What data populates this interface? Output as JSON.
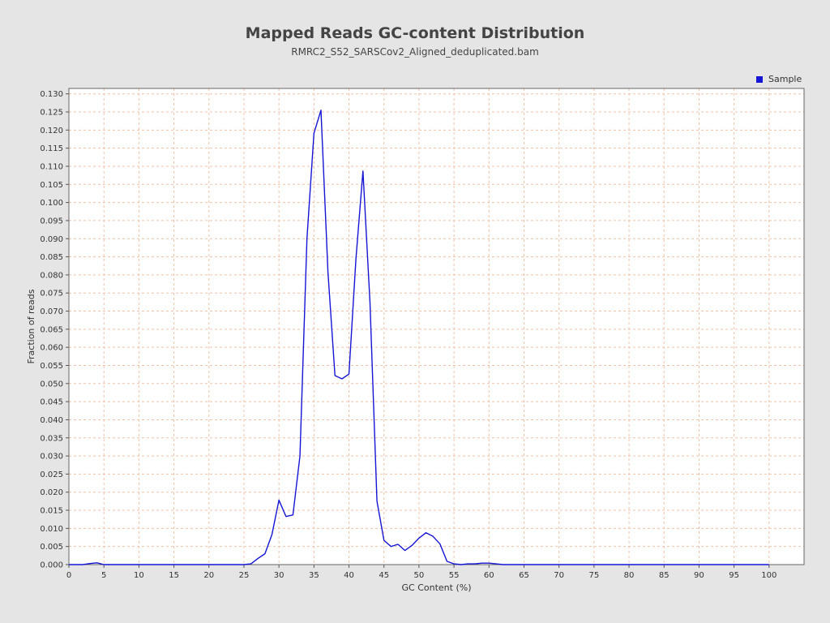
{
  "chart_data": {
    "type": "line",
    "title": "Mapped Reads GC-content Distribution",
    "subtitle": "RMRC2_S52_SARSCov2_Aligned_deduplicated.bam",
    "xlabel": "GC Content (%)",
    "ylabel": "Fraction of reads",
    "xlim": [
      0,
      105
    ],
    "ylim": [
      0,
      0.1315
    ],
    "x_ticks": [
      0,
      5,
      10,
      15,
      20,
      25,
      30,
      35,
      40,
      45,
      50,
      55,
      60,
      65,
      70,
      75,
      80,
      85,
      90,
      95,
      100
    ],
    "y_ticks": [
      "0.000",
      "0.005",
      "0.010",
      "0.015",
      "0.020",
      "0.025",
      "0.030",
      "0.035",
      "0.040",
      "0.045",
      "0.050",
      "0.055",
      "0.060",
      "0.065",
      "0.070",
      "0.075",
      "0.080",
      "0.085",
      "0.090",
      "0.095",
      "0.100",
      "0.105",
      "0.110",
      "0.115",
      "0.120",
      "0.125",
      "0.130"
    ],
    "grid": true,
    "legend_position": "top-right",
    "series": [
      {
        "name": "Sample",
        "color": "#1515d6",
        "x": [
          0,
          1,
          2,
          3,
          4,
          5,
          6,
          7,
          8,
          9,
          10,
          11,
          12,
          13,
          14,
          15,
          16,
          17,
          18,
          19,
          20,
          21,
          22,
          23,
          24,
          25,
          26,
          27,
          28,
          29,
          30,
          31,
          32,
          33,
          34,
          35,
          36,
          37,
          38,
          39,
          40,
          41,
          42,
          43,
          44,
          45,
          46,
          47,
          48,
          49,
          50,
          51,
          52,
          53,
          54,
          55,
          56,
          57,
          58,
          59,
          60,
          61,
          62,
          63,
          64,
          65,
          66,
          67,
          68,
          69,
          70,
          71,
          72,
          73,
          74,
          75,
          76,
          77,
          78,
          79,
          80,
          81,
          82,
          83,
          84,
          85,
          86,
          87,
          88,
          89,
          90,
          91,
          92,
          93,
          94,
          95,
          96,
          97,
          98,
          99,
          100
        ],
        "values": [
          0,
          0,
          0,
          0.0003,
          0.0005,
          0,
          0,
          0,
          0,
          0,
          0,
          0,
          0,
          0,
          0,
          0,
          0,
          0,
          0,
          0,
          0,
          0,
          0,
          0,
          0,
          0,
          0.0002,
          0.0017,
          0.003,
          0.0083,
          0.0178,
          0.0133,
          0.0137,
          0.03,
          0.09,
          0.1191,
          0.1255,
          0.0808,
          0.0522,
          0.0513,
          0.0526,
          0.0845,
          0.1087,
          0.0725,
          0.0175,
          0.0067,
          0.005,
          0.0056,
          0.0039,
          0.0053,
          0.0073,
          0.0088,
          0.0078,
          0.0057,
          0.0009,
          0.0002,
          0,
          0.0002,
          0.0002,
          0.0004,
          0.0004,
          0.0002,
          0,
          0,
          0,
          0,
          0,
          0,
          0,
          0,
          0,
          0,
          0,
          0,
          0,
          0,
          0,
          0,
          0,
          0,
          0,
          0,
          0,
          0,
          0,
          0,
          0,
          0,
          0,
          0,
          0,
          0,
          0,
          0,
          0,
          0,
          0,
          0,
          0,
          0,
          0
        ]
      }
    ]
  },
  "colors": {
    "background": "#e5e5e5",
    "plot_background": "#ffffff",
    "grid": "#f0c2a8",
    "series": "#1515d6"
  }
}
